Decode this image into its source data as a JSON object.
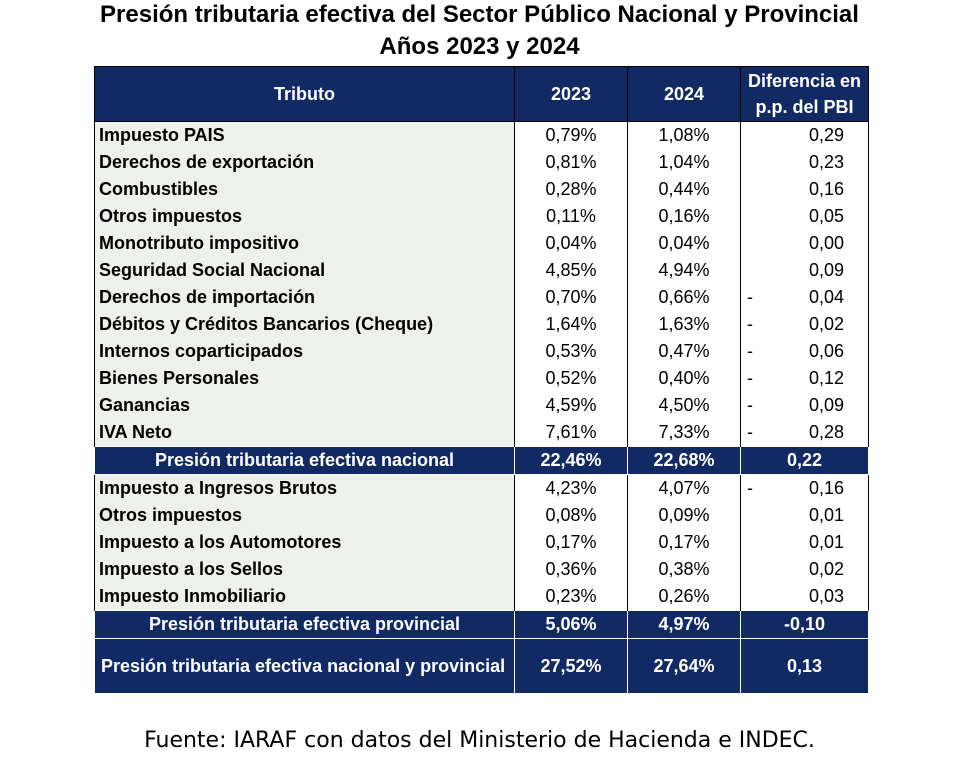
{
  "title": {
    "line1": "Presión tributaria efectiva del Sector Público Nacional y Provincial",
    "line2": "Años 2023 y 2024"
  },
  "table": {
    "headers": {
      "tributo": "Tributo",
      "y2023": "2023",
      "y2024": "2024",
      "diferencia_line1": "Diferencia en",
      "diferencia_line2": "p.p. del PBI"
    },
    "nacional_rows": [
      {
        "name": "Impuesto PAIS",
        "y2023": "0,79%",
        "y2024": "1,08%",
        "sign": "",
        "diff": "0,29"
      },
      {
        "name": "Derechos de exportación",
        "y2023": "0,81%",
        "y2024": "1,04%",
        "sign": "",
        "diff": "0,23"
      },
      {
        "name": "Combustibles",
        "y2023": "0,28%",
        "y2024": "0,44%",
        "sign": "",
        "diff": "0,16"
      },
      {
        "name": "Otros impuestos",
        "y2023": "0,11%",
        "y2024": "0,16%",
        "sign": "",
        "diff": "0,05"
      },
      {
        "name": "Monotributo impositivo",
        "y2023": "0,04%",
        "y2024": "0,04%",
        "sign": "",
        "diff": "0,00"
      },
      {
        "name": "Seguridad Social Nacional",
        "y2023": "4,85%",
        "y2024": "4,94%",
        "sign": "",
        "diff": "0,09"
      },
      {
        "name": "Derechos de importación",
        "y2023": "0,70%",
        "y2024": "0,66%",
        "sign": "-",
        "diff": "0,04"
      },
      {
        "name": "Débitos y Créditos Bancarios (Cheque)",
        "y2023": "1,64%",
        "y2024": "1,63%",
        "sign": "-",
        "diff": "0,02"
      },
      {
        "name": "Internos coparticipados",
        "y2023": "0,53%",
        "y2024": "0,47%",
        "sign": "-",
        "diff": "0,06"
      },
      {
        "name": "Bienes Personales",
        "y2023": "0,52%",
        "y2024": "0,40%",
        "sign": "-",
        "diff": "0,12"
      },
      {
        "name": "Ganancias",
        "y2023": "4,59%",
        "y2024": "4,50%",
        "sign": "-",
        "diff": "0,09"
      },
      {
        "name": "IVA Neto",
        "y2023": "7,61%",
        "y2024": "7,33%",
        "sign": "-",
        "diff": "0,28"
      }
    ],
    "nacional_total": {
      "name": "Presión tributaria efectiva nacional",
      "y2023": "22,46%",
      "y2024": "22,68%",
      "diff": "0,22"
    },
    "provincial_rows": [
      {
        "name": "Impuesto a Ingresos Brutos",
        "y2023": "4,23%",
        "y2024": "4,07%",
        "sign": "-",
        "diff": "0,16"
      },
      {
        "name": "Otros impuestos",
        "y2023": "0,08%",
        "y2024": "0,09%",
        "sign": "",
        "diff": "0,01"
      },
      {
        "name": "Impuesto a los Automotores",
        "y2023": "0,17%",
        "y2024": "0,17%",
        "sign": "",
        "diff": "0,01"
      },
      {
        "name": "Impuesto a los Sellos",
        "y2023": "0,36%",
        "y2024": "0,38%",
        "sign": "",
        "diff": "0,02"
      },
      {
        "name": "Impuesto Inmobiliario",
        "y2023": "0,23%",
        "y2024": "0,26%",
        "sign": "",
        "diff": "0,03"
      }
    ],
    "provincial_total": {
      "name": "Presión tributaria efectiva provincial",
      "y2023": "5,06%",
      "y2024": "4,97%",
      "diff": "-0,10"
    },
    "grand_total": {
      "name": "Presión tributaria efectiva nacional y provincial",
      "y2023": "27,52%",
      "y2024": "27,64%",
      "diff": "0,13"
    }
  },
  "source": "Fuente: IARAF con datos del Ministerio de Hacienda e INDEC."
}
